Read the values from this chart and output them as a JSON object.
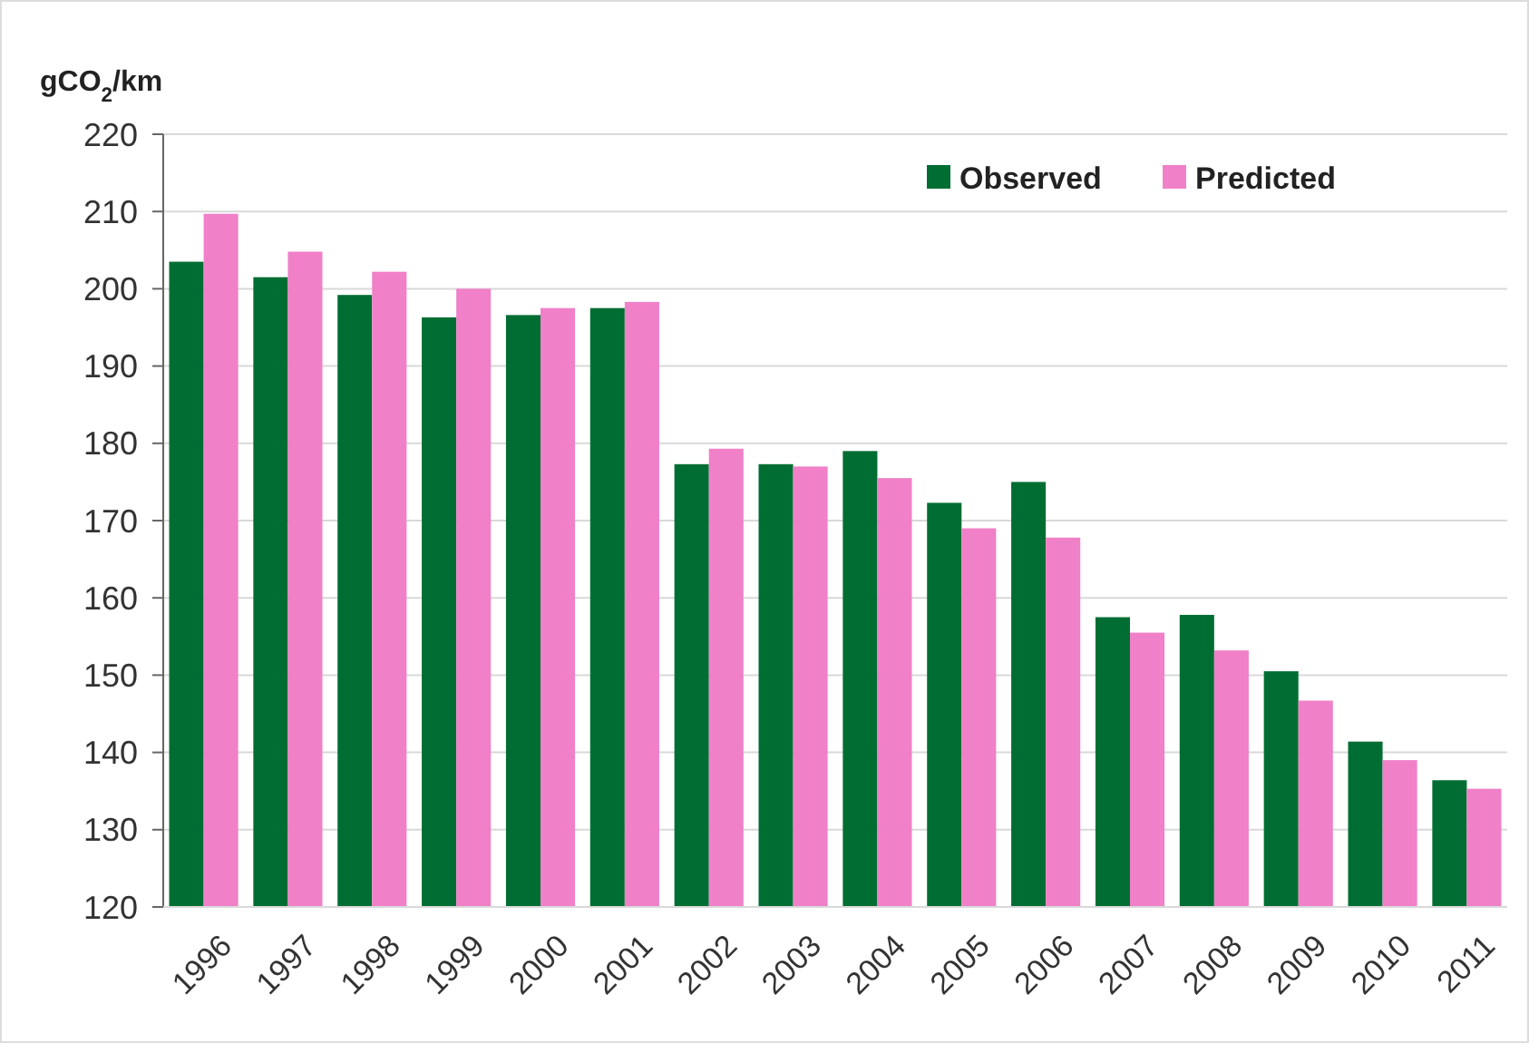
{
  "chart_data": {
    "type": "bar",
    "ylabel": "gCO$_{2}$/km",
    "categories": [
      "1996",
      "1997",
      "1998",
      "1999",
      "2000",
      "2001",
      "2002",
      "2003",
      "2004",
      "2005",
      "2006",
      "2007",
      "2008",
      "2009",
      "2010",
      "2011"
    ],
    "series": [
      {
        "name": "Observed",
        "color": "#006e33",
        "values": [
          203.5,
          201.5,
          199.2,
          196.3,
          196.6,
          197.5,
          177.3,
          177.3,
          179.0,
          172.3,
          175.0,
          157.5,
          157.8,
          150.5,
          141.4,
          136.4
        ]
      },
      {
        "name": "Predicted",
        "color": "#f080c8",
        "values": [
          209.7,
          204.8,
          202.2,
          200.0,
          197.5,
          198.3,
          179.3,
          177.0,
          175.5,
          169.0,
          167.8,
          155.5,
          153.2,
          146.7,
          139.0,
          135.3
        ]
      }
    ],
    "ylim": [
      120,
      220
    ],
    "yticks": [
      120,
      130,
      140,
      150,
      160,
      170,
      180,
      190,
      200,
      210,
      220
    ],
    "grid": "y",
    "legend": "top right"
  }
}
